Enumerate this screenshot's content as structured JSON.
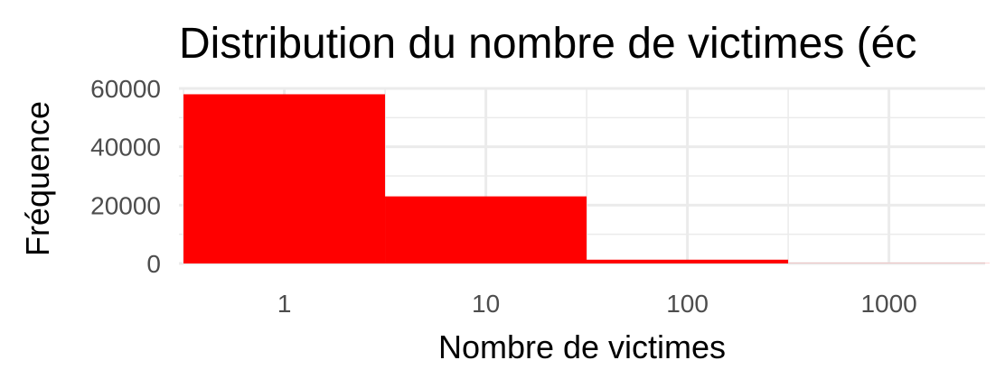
{
  "chart_data": {
    "type": "bar",
    "title": "Distribution du nombre de victimes (éc",
    "xlabel": "Nombre de victimes",
    "ylabel": "Fréquence",
    "x_scale": "log10",
    "xlim": [
      0.3,
      3000
    ],
    "ylim": [
      0,
      60000
    ],
    "x_ticks": [
      1,
      10,
      100,
      1000
    ],
    "y_ticks": [
      0,
      20000,
      40000,
      60000
    ],
    "bins": [
      {
        "x_start": 0.316,
        "x_end": 3.16,
        "count": 58000
      },
      {
        "x_start": 3.16,
        "x_end": 31.6,
        "count": 23000
      },
      {
        "x_start": 31.6,
        "x_end": 316,
        "count": 1300
      },
      {
        "x_start": 316,
        "x_end": 3160,
        "count": 50
      }
    ],
    "bar_color": "#ff0000",
    "grid": true,
    "legend": "none"
  }
}
